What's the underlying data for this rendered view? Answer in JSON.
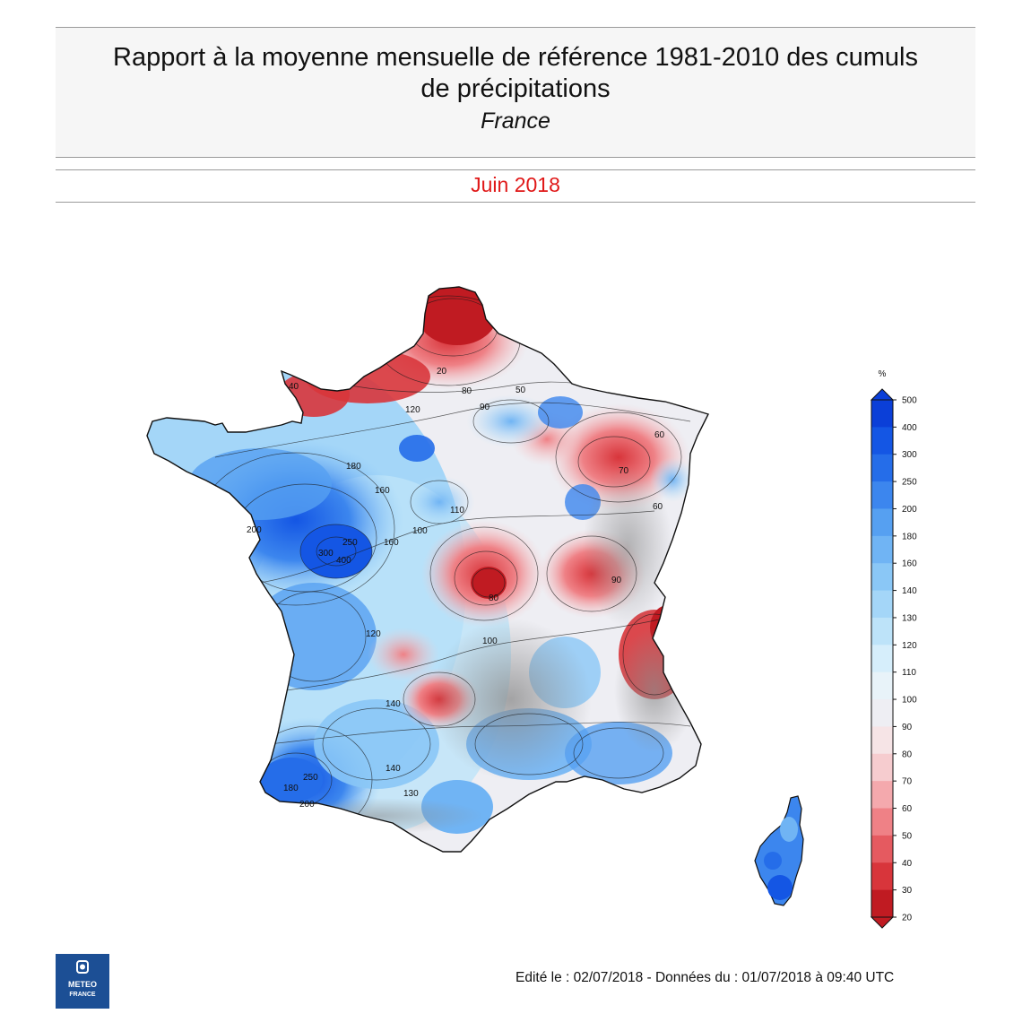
{
  "header": {
    "title_line1": "Rapport à la moyenne mensuelle de référence 1981-2010 des cumuls",
    "title_line2": "de précipitations",
    "region": "France",
    "period": "Juin 2018"
  },
  "legend": {
    "unit": "%",
    "levels": [
      "500",
      "400",
      "300",
      "250",
      "200",
      "180",
      "160",
      "140",
      "130",
      "120",
      "110",
      "100",
      "90",
      "80",
      "70",
      "60",
      "50",
      "40",
      "30",
      "20"
    ],
    "colors": [
      "#0b3fd8",
      "#1456e4",
      "#256de9",
      "#3c86ee",
      "#56a0f1",
      "#70b4f4",
      "#8ac7f6",
      "#a4d6f8",
      "#bde3f9",
      "#d6eefb",
      "#e8f3f9",
      "#eeeef3",
      "#f6e4e6",
      "#f6cccf",
      "#f4a9ad",
      "#ef8186",
      "#e55a60",
      "#d8353b",
      "#c01b22"
    ]
  },
  "map": {
    "contour_labels": [
      "20",
      "40",
      "50",
      "60",
      "70",
      "80",
      "90",
      "100",
      "110",
      "120",
      "130",
      "140",
      "160",
      "180",
      "200",
      "250",
      "300",
      "400",
      "60",
      "80",
      "90",
      "100",
      "120",
      "140",
      "160",
      "180",
      "200",
      "250"
    ]
  },
  "footer": {
    "edition": "Edité le : 02/07/2018 - Données du : 01/07/2018 à 09:40 UTC"
  },
  "logo": {
    "line1": "METEO",
    "line2": "FRANCE"
  }
}
